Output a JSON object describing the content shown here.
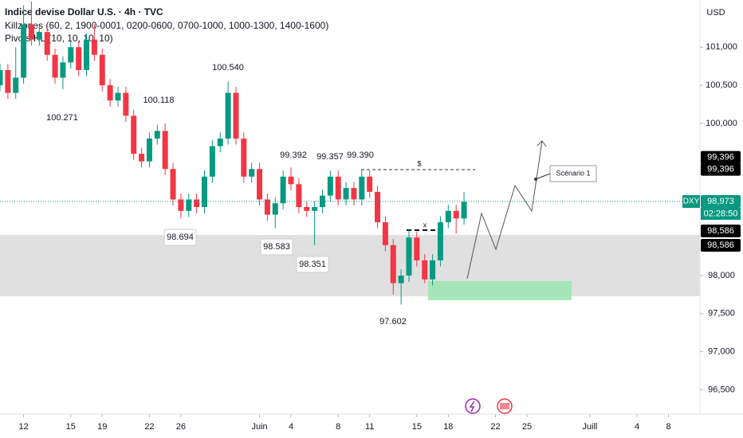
{
  "chart_data": {
    "type": "candlestick",
    "title": "Indice devise Dollar U.S. · 4h · TVC",
    "indicators": [
      "Killzones (60, 2, 1900-0001, 0200-0600, 0700-1000, 1000-1300, 1400-1600)",
      "Pivots HL (10, 10, 10, 10)"
    ],
    "currency": "USD",
    "symbol": "DXY",
    "countdown": "02:28:50",
    "up_color": "#089981",
    "down_color": "#f23645",
    "x": [
      -1.5,
      -1,
      -0.5,
      0,
      0.5,
      1,
      1.5,
      2,
      2.5,
      3,
      3.5,
      4,
      4.5,
      5,
      5.5,
      6,
      6.5,
      7,
      7.5,
      8,
      8.5,
      9,
      9.5,
      10,
      10.5,
      11,
      11.5,
      12,
      12.5,
      13,
      13.5,
      14,
      14.5,
      15,
      15.5,
      16,
      16.5,
      17,
      17.5,
      18,
      18.5,
      19,
      19.5,
      20,
      20.5,
      21,
      21.5,
      22,
      22.5,
      23,
      23.5,
      24,
      24.5,
      25,
      25.5,
      26,
      26.5,
      27,
      27.5,
      28
    ],
    "open": [
      100.5,
      100.7,
      100.4,
      100.6,
      101.3,
      101.1,
      101.2,
      100.9,
      100.6,
      100.8,
      101.0,
      100.7,
      101.1,
      100.9,
      100.5,
      100.3,
      100.4,
      100.1,
      99.6,
      99.5,
      99.8,
      99.9,
      99.4,
      99.0,
      98.85,
      99.0,
      98.9,
      99.3,
      99.7,
      99.8,
      100.4,
      99.8,
      99.3,
      99.4,
      99.0,
      98.8,
      98.95,
      99.3,
      99.2,
      98.9,
      98.85,
      98.9,
      99.05,
      99.3,
      99.0,
      99.15,
      99.0,
      99.3,
      99.1,
      98.7,
      98.4,
      97.9,
      98.0,
      98.5,
      98.2,
      97.95,
      98.2,
      98.7,
      98.85,
      98.75
    ],
    "high": [
      100.78,
      100.78,
      101.0,
      101.55,
      101.6,
      101.28,
      101.28,
      100.98,
      100.88,
      101.08,
      101.08,
      101.18,
      101.3,
      100.98,
      100.58,
      100.48,
      100.48,
      100.18,
      99.68,
      99.88,
      99.98,
      100.0,
      99.48,
      99.08,
      99.08,
      99.08,
      99.38,
      99.78,
      99.88,
      100.55,
      100.48,
      99.88,
      99.48,
      99.48,
      99.08,
      99.03,
      99.38,
      99.42,
      99.28,
      98.98,
      98.98,
      99.13,
      99.38,
      99.38,
      99.23,
      99.23,
      99.4,
      99.38,
      99.18,
      98.78,
      98.48,
      98.08,
      98.6,
      98.58,
      98.28,
      98.28,
      98.78,
      98.93,
      98.93,
      99.1
    ],
    "low": [
      100.42,
      100.32,
      100.32,
      100.52,
      101.02,
      101.02,
      100.82,
      100.52,
      100.45,
      100.72,
      100.62,
      100.62,
      100.82,
      100.42,
      100.22,
      100.22,
      100.02,
      99.52,
      99.42,
      99.42,
      99.72,
      99.32,
      98.92,
      98.75,
      98.77,
      98.82,
      98.82,
      99.22,
      99.62,
      99.72,
      99.72,
      99.22,
      99.22,
      98.92,
      98.72,
      98.62,
      98.87,
      99.12,
      98.82,
      98.77,
      98.4,
      98.82,
      98.97,
      98.92,
      98.92,
      98.92,
      98.92,
      99.02,
      98.62,
      98.32,
      97.75,
      97.62,
      97.92,
      98.12,
      97.9,
      97.87,
      98.12,
      98.62,
      98.55,
      98.67
    ],
    "close": [
      100.7,
      100.4,
      100.6,
      101.3,
      101.1,
      101.2,
      100.9,
      100.6,
      100.8,
      101.0,
      100.7,
      101.1,
      100.9,
      100.5,
      100.3,
      100.4,
      100.1,
      99.6,
      99.5,
      99.8,
      99.9,
      99.4,
      99.0,
      98.85,
      99.0,
      98.9,
      99.3,
      99.7,
      99.8,
      100.4,
      99.8,
      99.3,
      99.4,
      99.0,
      98.8,
      98.95,
      99.3,
      99.2,
      98.9,
      98.85,
      98.9,
      99.05,
      99.3,
      99.0,
      99.15,
      99.0,
      99.3,
      99.1,
      98.7,
      98.4,
      97.9,
      98.0,
      98.5,
      98.2,
      97.95,
      98.2,
      98.7,
      98.85,
      98.75,
      98.97
    ],
    "xlim": [
      -1.5,
      43.0
    ],
    "ylim": [
      96.18,
      101.62
    ],
    "xticks": [
      {
        "value": 0,
        "label": "12"
      },
      {
        "value": 3,
        "label": "15"
      },
      {
        "value": 5,
        "label": "19"
      },
      {
        "value": 8,
        "label": "22"
      },
      {
        "value": 10,
        "label": "26"
      },
      {
        "value": 15,
        "label": "Juin"
      },
      {
        "value": 17,
        "label": "4"
      },
      {
        "value": 20,
        "label": "8"
      },
      {
        "value": 22,
        "label": "11"
      },
      {
        "value": 25,
        "label": "15"
      },
      {
        "value": 27,
        "label": "18"
      },
      {
        "value": 30,
        "label": "22"
      },
      {
        "value": 32,
        "label": "25"
      },
      {
        "value": 36,
        "label": "Juill"
      },
      {
        "value": 39,
        "label": "4"
      },
      {
        "value": 41,
        "label": "8"
      }
    ],
    "yticks": [
      {
        "value": 96.5,
        "label": "96,500"
      },
      {
        "value": 97,
        "label": "97,000"
      },
      {
        "value": 97.5,
        "label": "97,500"
      },
      {
        "value": 98,
        "label": "98,000"
      },
      {
        "value": 100,
        "label": "100,000"
      },
      {
        "value": 100.5,
        "label": "100,500"
      },
      {
        "value": 101,
        "label": "101,000"
      }
    ],
    "price_marks": [
      {
        "value": 99.396,
        "label": "99,396"
      },
      {
        "value": 99.396,
        "label": "99,396"
      },
      {
        "value": 98.973,
        "label": "98,973"
      },
      {
        "value": 98.586,
        "label": "98,586"
      },
      {
        "value": 98.586,
        "label": "98,586"
      }
    ],
    "pivots": [
      "100.271",
      "100.118",
      "100.540",
      "98.694",
      "99.392",
      "98.583",
      "98.351",
      "99.357",
      "99.390",
      "97.602"
    ],
    "annotations": [
      "$",
      "x",
      "Scénario 1"
    ]
  }
}
